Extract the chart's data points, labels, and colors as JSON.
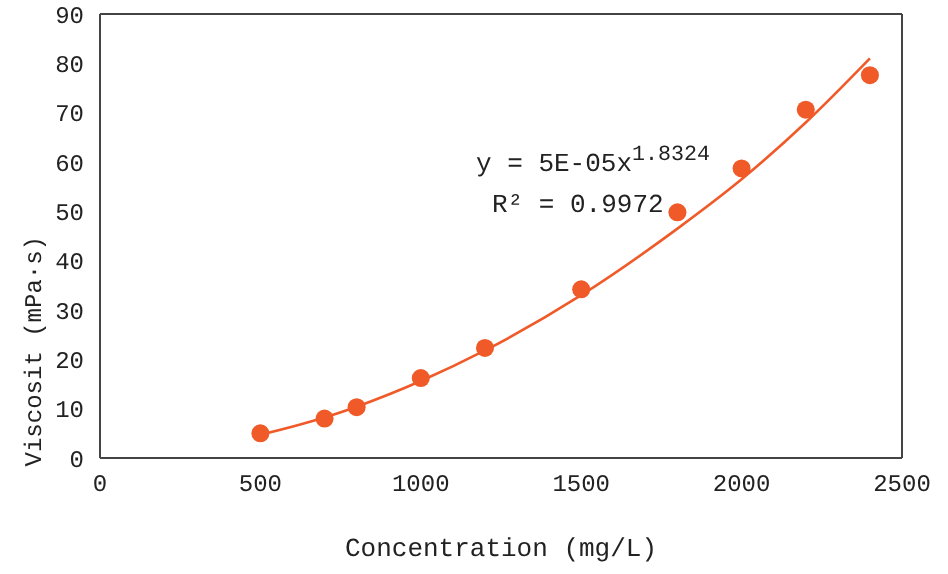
{
  "chart_data": {
    "type": "scatter",
    "xlabel": "Concentration (mg/L)",
    "ylabel": "Viscosit (mPa·s)",
    "xlim": [
      0,
      2500
    ],
    "xticks": [
      0,
      500,
      1000,
      1500,
      2000,
      2500
    ],
    "ylim": [
      0,
      90
    ],
    "yticks": [
      0,
      10,
      20,
      30,
      40,
      50,
      60,
      70,
      80,
      90
    ],
    "grid": false,
    "annotations": [
      "y = 5E-05x$^{1.8324}$",
      "R² = 0.9972"
    ],
    "series": [
      {
        "marker": "circle",
        "color": "#f05a28",
        "x": [
          500,
          700,
          800,
          1000,
          1200,
          1500,
          1800,
          2000,
          2200,
          2400
        ],
        "values": [
          5,
          8,
          10.3,
          16.2,
          22.3,
          34.2,
          49.8,
          58.7,
          70.6,
          77.6
        ]
      },
      {
        "type": "line",
        "color": "#f05a28",
        "marker": "none",
        "line_style": "solid",
        "x": [
          500,
          700,
          800,
          1000,
          1200,
          1500,
          1800,
          2000,
          2200,
          2400
        ],
        "values": [
          4.7,
          8.2,
          10.4,
          15.6,
          21.8,
          33,
          46.5,
          56.5,
          68,
          81
        ]
      }
    ]
  }
}
